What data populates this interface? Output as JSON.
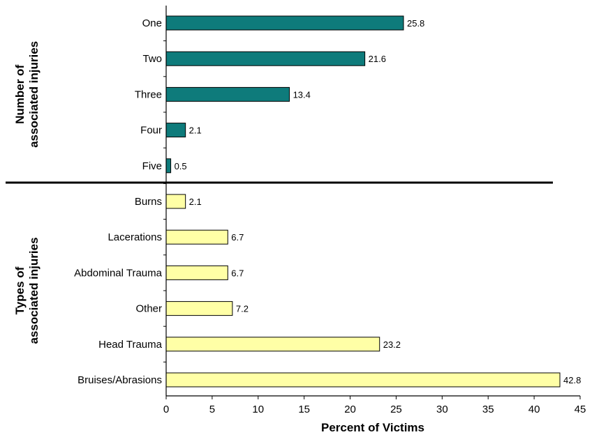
{
  "chart_data": {
    "type": "bar",
    "orientation": "horizontal",
    "xlabel": "Percent of Victims",
    "xlim": [
      0,
      45
    ],
    "xticks": [
      0,
      5,
      10,
      15,
      20,
      25,
      30,
      35,
      40,
      45
    ],
    "grid": false,
    "groups": [
      {
        "title_lines": [
          "Number of",
          "associated injuries"
        ],
        "color": "#0e7b7b",
        "categories": [
          "One",
          "Two",
          "Three",
          "Four",
          "Five"
        ],
        "values": [
          25.8,
          21.6,
          13.4,
          2.1,
          0.5
        ],
        "value_labels": [
          "25.8",
          "21.6",
          "13.4",
          "2.1",
          "0.5"
        ]
      },
      {
        "title_lines": [
          "Types of",
          "associated injuries"
        ],
        "color": "#ffffa6",
        "categories": [
          "Burns",
          "Lacerations",
          "Abdominal Trauma",
          "Other",
          "Head Trauma",
          "Bruises/Abrasions"
        ],
        "values": [
          2.1,
          6.7,
          6.7,
          7.2,
          23.2,
          42.8
        ],
        "value_labels": [
          "2.1",
          "6.7",
          "6.7",
          "7.2",
          "23.2",
          "42.8"
        ]
      }
    ]
  }
}
